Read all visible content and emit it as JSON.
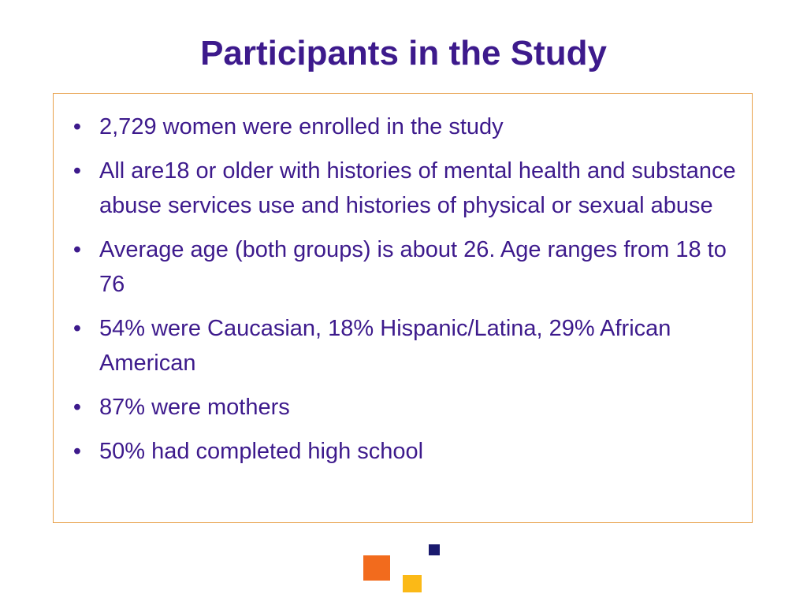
{
  "slide": {
    "title": "Participants in the Study",
    "bullet_symbol": "•",
    "bullets": [
      "2,729 women were enrolled in the study",
      "All are18 or older with histories of mental health and substance abuse services use and histories of physical or sexual abuse",
      "Average age (both groups) is about 26. Age ranges from 18 to 76",
      "54% were Caucasian, 18% Hispanic/Latina, 29% African American",
      "87% were mothers",
      "50% had completed high school"
    ]
  },
  "colors": {
    "title": "#3d1a8c",
    "body_text": "#3d1a8c",
    "box_border": "#e8a04a",
    "decor_orange": "#f26b1d",
    "decor_yellow": "#fbb917",
    "decor_navy": "#1a1a6e"
  }
}
